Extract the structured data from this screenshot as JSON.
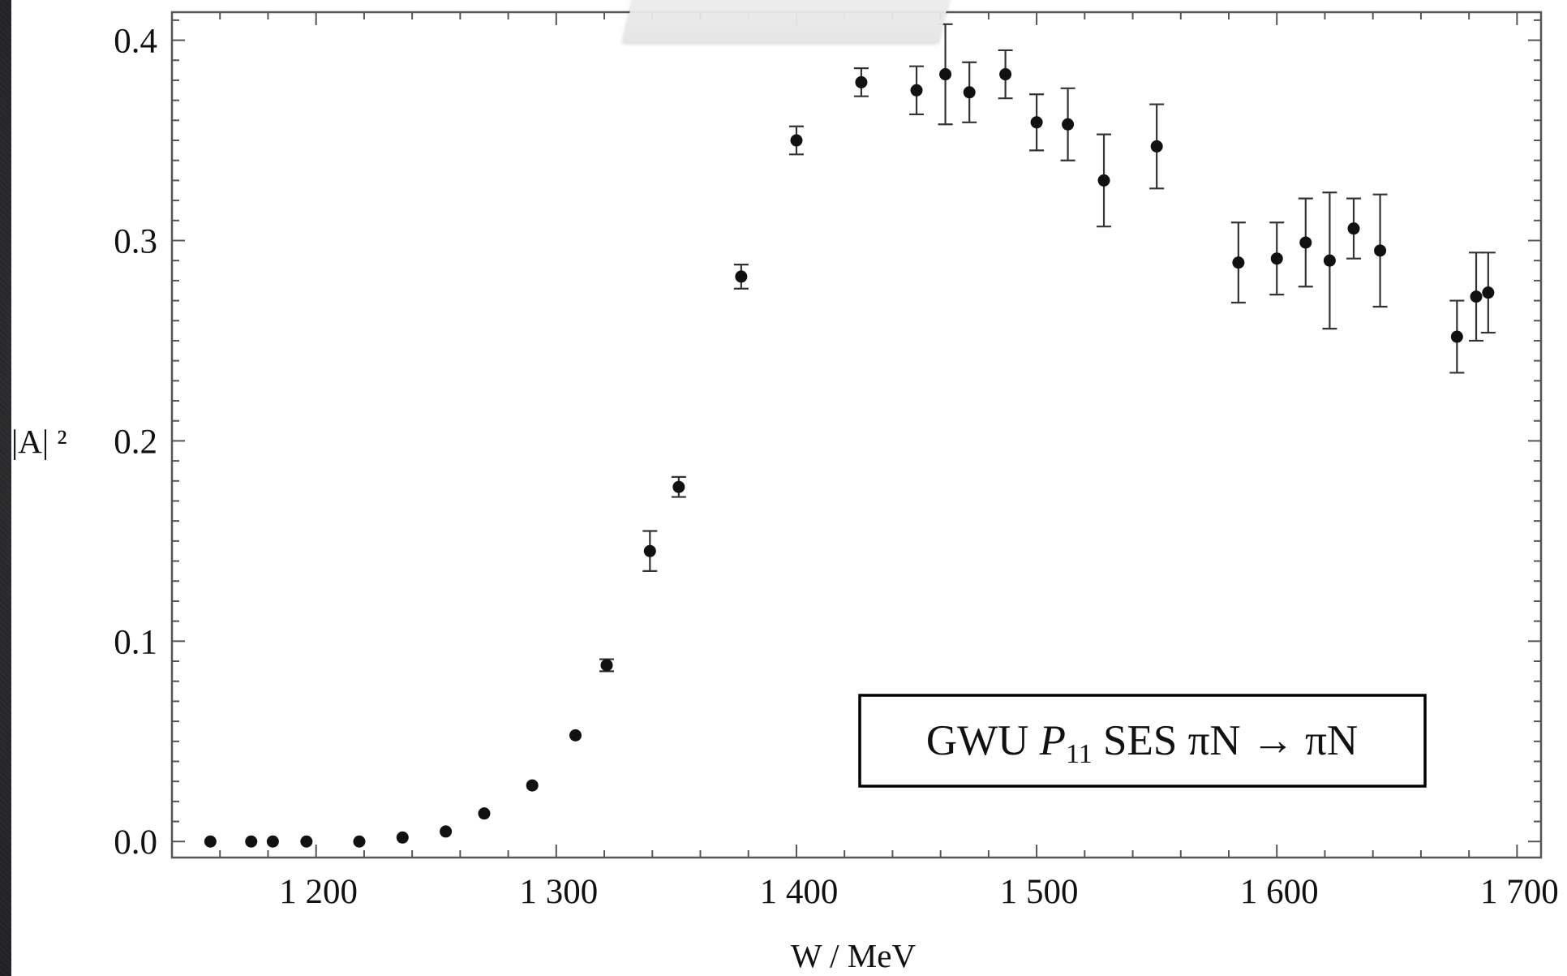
{
  "chart_data": {
    "type": "scatter",
    "title": "",
    "xlabel": "W / MeV",
    "ylabel": "|A| ²",
    "legend": "GWU P₁₁ SES πN → πN",
    "legend_parts": {
      "prefix": "GWU ",
      "symbol": "P",
      "subscript": "11",
      "suffix": " SES πN → πN"
    },
    "legend_position": "bottom-right",
    "xlim": [
      1140,
      1710
    ],
    "ylim": [
      -0.008,
      0.414
    ],
    "x_ticks": [
      1200,
      1300,
      1400,
      1500,
      1600,
      1700
    ],
    "x_tick_labels": [
      "1 200",
      "1 300",
      "1 400",
      "1 500",
      "1 600",
      "1 700"
    ],
    "y_ticks": [
      0.0,
      0.1,
      0.2,
      0.3,
      0.4
    ],
    "y_tick_labels": [
      "0.0",
      "0.1",
      "0.2",
      "0.3",
      "0.4"
    ],
    "grid": false,
    "series": [
      {
        "x": [
          1156,
          1173,
          1182,
          1196,
          1218,
          1236,
          1254,
          1270,
          1290,
          1308,
          1321,
          1339,
          1351,
          1377,
          1400,
          1427,
          1450,
          1462,
          1472,
          1487,
          1500,
          1513,
          1528,
          1550,
          1584,
          1600,
          1612,
          1622,
          1632,
          1643,
          1675,
          1683,
          1688
        ],
        "y": [
          0.0,
          0.0,
          0.0,
          0.0,
          0.0,
          0.002,
          0.005,
          0.014,
          0.028,
          0.053,
          0.088,
          0.145,
          0.177,
          0.282,
          0.35,
          0.379,
          0.375,
          0.383,
          0.374,
          0.383,
          0.359,
          0.358,
          0.33,
          0.347,
          0.289,
          0.291,
          0.299,
          0.29,
          0.306,
          0.295,
          0.252,
          0.272,
          0.274
        ],
        "err": [
          0.0,
          0.0,
          0.0,
          0.0,
          0.0,
          0.0,
          0.0,
          0.0,
          0.0,
          0.0,
          0.003,
          0.01,
          0.005,
          0.006,
          0.007,
          0.007,
          0.012,
          0.025,
          0.015,
          0.012,
          0.014,
          0.018,
          0.023,
          0.021,
          0.02,
          0.018,
          0.022,
          0.034,
          0.015,
          0.028,
          0.018,
          0.022,
          0.02
        ]
      }
    ]
  },
  "colors": {
    "marker": "#111111",
    "frame": "#555555",
    "slide_background": "#2c2c2e"
  }
}
